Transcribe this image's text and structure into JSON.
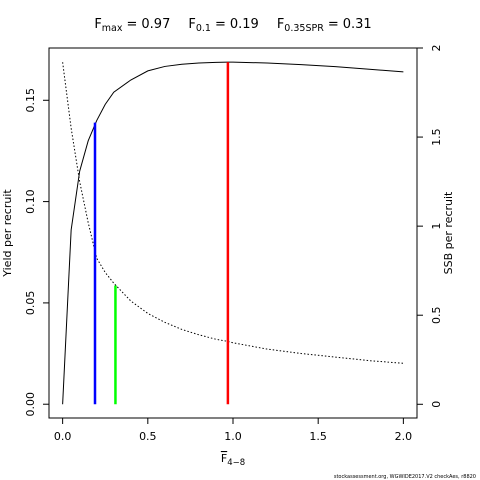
{
  "chart_data": {
    "type": "line",
    "xlabel": "F",
    "xlabel_subscript": "4−8",
    "ylabel": "Yield per recruit",
    "y2label": "SSB per recruit",
    "footer": "stockassessment.org, WGWIDE2017.V2 checkAes, r8820",
    "x": [
      0,
      0.05,
      0.1,
      0.15,
      0.2,
      0.25,
      0.3,
      0.4,
      0.5,
      0.6,
      0.7,
      0.8,
      0.9,
      0.97,
      1.0,
      1.2,
      1.4,
      1.6,
      1.8,
      2.0
    ],
    "series": [
      {
        "color": "#000000",
        "dash": false,
        "values": [
          0,
          0.086,
          0.115,
          0.13,
          0.14,
          0.148,
          0.154,
          0.16,
          0.1645,
          0.1667,
          0.1678,
          0.1684,
          0.1687,
          0.1688,
          0.1688,
          0.1684,
          0.1676,
          0.1666,
          0.1653,
          0.164
        ]
      },
      {
        "color": "#000000",
        "dash": true,
        "axis": "y2",
        "values": [
          1.92,
          1.55,
          1.25,
          1.02,
          0.82,
          0.74,
          0.68,
          0.58,
          0.51,
          0.46,
          0.42,
          0.39,
          0.365,
          0.353,
          0.345,
          0.31,
          0.285,
          0.265,
          0.245,
          0.23
        ]
      }
    ],
    "reference_lines": [
      {
        "label": "F",
        "subscript": "max",
        "relation": "=",
        "value": 0.97,
        "top": 0.1688,
        "color": "#ff0000"
      },
      {
        "label": "F",
        "subscript": "0.1",
        "relation": "=",
        "value": 0.19,
        "top": 0.139,
        "color": "#0000ff"
      },
      {
        "label": "F",
        "subscript": "0.35SPR",
        "relation": "=",
        "value": 0.31,
        "top": 0.667,
        "top_axis": "y2",
        "color": "#00ff00"
      }
    ],
    "xlim": [
      -0.08,
      2.08
    ],
    "ylim": [
      -0.0068,
      0.1758
    ],
    "y2lim": [
      -0.077,
      2.0
    ],
    "xticks": [
      {
        "value": 0,
        "label": "0.0"
      },
      0.5,
      {
        "value": 1,
        "label": "1.0"
      },
      1.5,
      {
        "value": 2,
        "label": "2.0"
      }
    ],
    "yticks": [
      {
        "value": 0,
        "label": "0.00"
      },
      0.05,
      {
        "value": 0.1,
        "label": "0.10"
      },
      0.15
    ],
    "y2ticks": [
      0,
      0.5,
      1,
      1.5,
      2
    ]
  }
}
